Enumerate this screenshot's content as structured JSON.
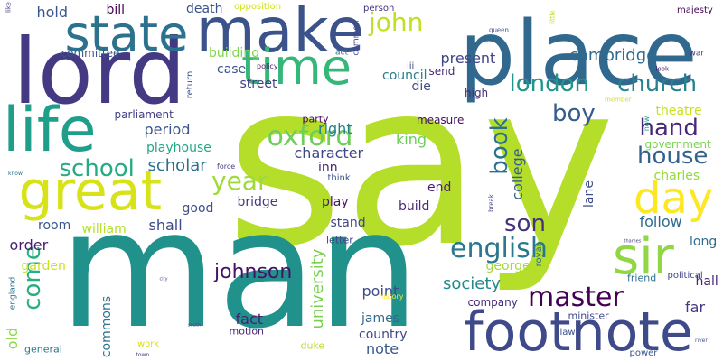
{
  "words": [
    {
      "id": "say",
      "text": "say",
      "color": "#b5de2b"
    },
    {
      "id": "man",
      "text": "man",
      "color": "#21918c"
    },
    {
      "id": "place",
      "text": "place",
      "color": "#31688e"
    },
    {
      "id": "lord",
      "text": "lord",
      "color": "#443983"
    },
    {
      "id": "make",
      "text": "make",
      "color": "#3b528b"
    },
    {
      "id": "state",
      "text": "state",
      "color": "#2c728e"
    },
    {
      "id": "time",
      "text": "time",
      "color": "#35b779"
    },
    {
      "id": "footnote",
      "text": "footnote",
      "color": "#3e4a89"
    },
    {
      "id": "great",
      "text": "great",
      "color": "#d8e219"
    },
    {
      "id": "life",
      "text": "life",
      "color": "#1f9e89"
    },
    {
      "id": "sir",
      "text": "sir",
      "color": "#90d743"
    },
    {
      "id": "day",
      "text": "day",
      "color": "#fde725"
    },
    {
      "id": "church",
      "text": "church",
      "color": "#26828e"
    },
    {
      "id": "london",
      "text": "london",
      "color": "#1f968b"
    },
    {
      "id": "english",
      "text": "english",
      "color": "#2a788e"
    },
    {
      "id": "oxford",
      "text": "oxford",
      "color": "#6ece58"
    },
    {
      "id": "john",
      "text": "john",
      "color": "#c2df23"
    },
    {
      "id": "master",
      "text": "master",
      "color": "#440154"
    },
    {
      "id": "boy",
      "text": "boy",
      "color": "#365c8d"
    },
    {
      "id": "hand",
      "text": "hand",
      "color": "#482878"
    },
    {
      "id": "house",
      "text": "house",
      "color": "#33638d"
    },
    {
      "id": "year",
      "text": "year",
      "color": "#a0da39"
    },
    {
      "id": "school",
      "text": "school",
      "color": "#25ac82"
    },
    {
      "id": "book",
      "text": "book",
      "color": "#2d708e"
    },
    {
      "id": "son",
      "text": "son",
      "color": "#46337e"
    },
    {
      "id": "come",
      "text": "come",
      "color": "#29af7f"
    },
    {
      "id": "johnson",
      "text": "johnson",
      "color": "#471164"
    },
    {
      "id": "scholar",
      "text": "scholar",
      "color": "#2e6f8e"
    },
    {
      "id": "cambridge",
      "text": "cambridge",
      "color": "#306a8e"
    },
    {
      "id": "society",
      "text": "society",
      "color": "#23898e"
    },
    {
      "id": "university",
      "text": "university",
      "color": "#7ad151"
    },
    {
      "id": "present",
      "text": "present",
      "color": "#414487"
    },
    {
      "id": "college",
      "text": "college",
      "color": "#355f8d"
    },
    {
      "id": "character",
      "text": "character",
      "color": "#3f4788"
    },
    {
      "id": "follow",
      "text": "follow",
      "color": "#2f6b8e"
    },
    {
      "id": "fact",
      "text": "fact",
      "color": "#482173"
    },
    {
      "id": "point",
      "text": "point",
      "color": "#3d4d8a"
    },
    {
      "id": "note",
      "text": "note",
      "color": "#38588c"
    },
    {
      "id": "period",
      "text": "period",
      "color": "#3a548c"
    },
    {
      "id": "right",
      "text": "right",
      "color": "#277f8e"
    },
    {
      "id": "far",
      "text": "far",
      "color": "#453781"
    },
    {
      "id": "king",
      "text": "king",
      "color": "#6ccd5a"
    },
    {
      "id": "playhouse",
      "text": "playhouse",
      "color": "#22a785"
    },
    {
      "id": "hold",
      "text": "hold",
      "color": "#39568c"
    },
    {
      "id": "death",
      "text": "death",
      "color": "#3b528b"
    },
    {
      "id": "bill",
      "text": "bill",
      "color": "#440154"
    },
    {
      "id": "shall",
      "text": "shall",
      "color": "#3e4989"
    },
    {
      "id": "order",
      "text": "order",
      "color": "#481f70"
    },
    {
      "id": "old",
      "text": "old",
      "color": "#8bd646"
    },
    {
      "id": "theatre",
      "text": "theatre",
      "color": "#c8e020"
    },
    {
      "id": "hall",
      "text": "hall",
      "color": "#482576"
    },
    {
      "id": "long",
      "text": "long",
      "color": "#2f6c8e"
    },
    {
      "id": "council",
      "text": "council",
      "color": "#297b8e"
    },
    {
      "id": "case",
      "text": "case",
      "color": "#3a538b"
    },
    {
      "id": "building",
      "text": "building",
      "color": "#7fd34e"
    },
    {
      "id": "street",
      "text": "street",
      "color": "#424086"
    },
    {
      "id": "william",
      "text": "william",
      "color": "#b5de2b"
    },
    {
      "id": "george",
      "text": "george",
      "color": "#a2da37"
    },
    {
      "id": "james",
      "text": "james",
      "color": "#31688e"
    },
    {
      "id": "country",
      "text": "country",
      "color": "#3f4889"
    },
    {
      "id": "commons",
      "text": "commons",
      "color": "#2c738e"
    },
    {
      "id": "company",
      "text": "company",
      "color": "#472c7a"
    },
    {
      "id": "room",
      "text": "room",
      "color": "#39568c"
    },
    {
      "id": "play",
      "text": "play",
      "color": "#481668"
    },
    {
      "id": "stand",
      "text": "stand",
      "color": "#404588"
    },
    {
      "id": "build",
      "text": "build",
      "color": "#472a7a"
    },
    {
      "id": "bridge",
      "text": "bridge",
      "color": "#453882"
    },
    {
      "id": "end",
      "text": "end",
      "color": "#482071"
    },
    {
      "id": "garden",
      "text": "garden",
      "color": "#cde11d"
    },
    {
      "id": "good",
      "text": "good",
      "color": "#3d4e8a"
    },
    {
      "id": "lane",
      "text": "lane",
      "color": "#3e4a89"
    },
    {
      "id": "charles",
      "text": "charles",
      "color": "#95d840"
    },
    {
      "id": "government",
      "text": "government",
      "color": "#7ad151"
    },
    {
      "id": "die",
      "text": "die",
      "color": "#3d4e8a"
    },
    {
      "id": "inn",
      "text": "inn",
      "color": "#482576"
    },
    {
      "id": "committee",
      "text": "committee",
      "color": "#3a548c"
    },
    {
      "id": "parliament",
      "text": "parliament",
      "color": "#433e85"
    },
    {
      "id": "measure",
      "text": "measure",
      "color": "#460b5e"
    },
    {
      "id": "party",
      "text": "party",
      "color": "#440154"
    },
    {
      "id": "high",
      "text": "high",
      "color": "#472d7b"
    },
    {
      "id": "send",
      "text": "send",
      "color": "#482677"
    },
    {
      "id": "letter",
      "text": "letter",
      "color": "#3f4788"
    },
    {
      "id": "motion",
      "text": "motion",
      "color": "#482878"
    },
    {
      "id": "duke",
      "text": "duke",
      "color": "#b8de29"
    },
    {
      "id": "general",
      "text": "general",
      "color": "#2a768e"
    },
    {
      "id": "work",
      "text": "work",
      "color": "#d5e21a"
    },
    {
      "id": "minister",
      "text": "minister",
      "color": "#3e4989"
    },
    {
      "id": "friend",
      "text": "friend",
      "color": "#2e6e8e"
    },
    {
      "id": "political",
      "text": "political",
      "color": "#404588"
    },
    {
      "id": "royal",
      "text": "royal",
      "color": "#2e6e8e"
    },
    {
      "id": "law",
      "text": "law",
      "color": "#3b528b"
    },
    {
      "id": "power",
      "text": "power",
      "color": "#3a548c"
    },
    {
      "id": "person",
      "text": "person",
      "color": "#46307e"
    },
    {
      "id": "opposition",
      "text": "opposition",
      "color": "#d0e11c"
    },
    {
      "id": "majesty",
      "text": "majesty",
      "color": "#440154"
    },
    {
      "id": "england",
      "text": "england",
      "color": "#2d718e"
    },
    {
      "id": "history",
      "text": "history",
      "color": "#fde725"
    },
    {
      "id": "think",
      "text": "think",
      "color": "#3b528b"
    },
    {
      "id": "force",
      "text": "force",
      "color": "#424086"
    },
    {
      "id": "policy",
      "text": "policy",
      "color": "#481b6d"
    },
    {
      "id": "act",
      "text": "act",
      "color": "#2c738e"
    },
    {
      "id": "iii",
      "text": "iii",
      "color": "#404588"
    },
    {
      "id": "common",
      "text": "common",
      "color": "#3f4889"
    },
    {
      "id": "return",
      "text": "return",
      "color": "#3b528b"
    },
    {
      "id": "war",
      "text": "war",
      "color": "#453882"
    },
    {
      "id": "member",
      "text": "member",
      "color": "#d2e21b"
    },
    {
      "id": "break",
      "text": "break",
      "color": "#404588"
    },
    {
      "id": "new",
      "text": "new",
      "color": "#1f9a8a"
    },
    {
      "id": "look",
      "text": "look",
      "color": "#481b6d"
    },
    {
      "id": "queen",
      "text": "queen",
      "color": "#3e4a89"
    },
    {
      "id": "little",
      "text": "little",
      "color": "#b5de2b"
    },
    {
      "id": "know",
      "text": "know",
      "color": "#2c728e"
    },
    {
      "id": "like",
      "text": "like",
      "color": "#433e85"
    },
    {
      "id": "thames",
      "text": "thames",
      "color": "#433e85"
    },
    {
      "id": "river",
      "text": "river",
      "color": "#3b528b"
    },
    {
      "id": "city",
      "text": "city",
      "color": "#3e4a89"
    },
    {
      "id": "town",
      "text": "town",
      "color": "#433e85"
    },
    {
      "id": "south",
      "text": "south",
      "color": "#3b528b"
    }
  ]
}
